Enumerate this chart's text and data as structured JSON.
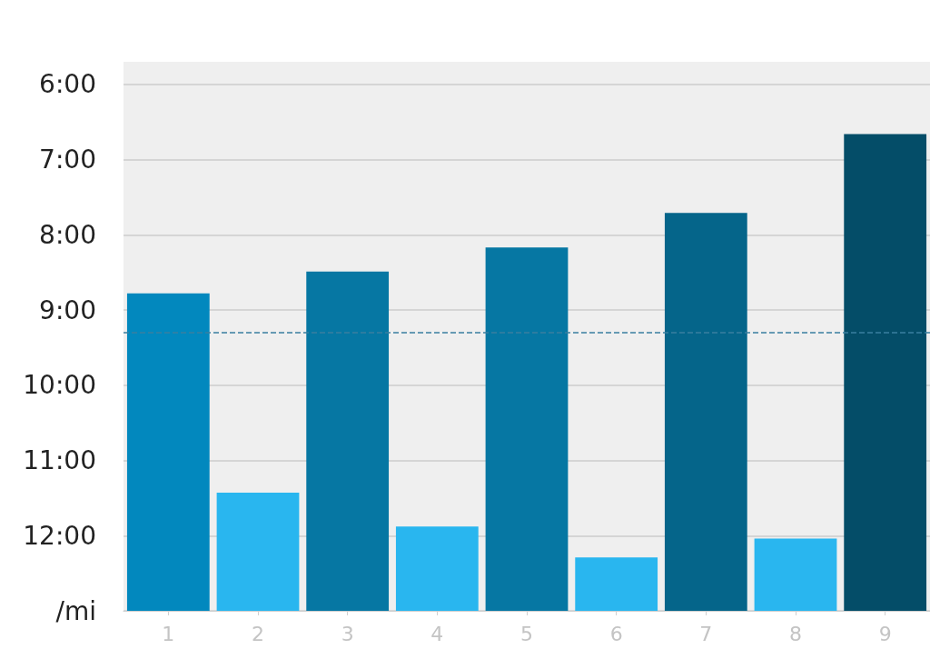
{
  "chart_data": {
    "type": "bar",
    "categories": [
      "1",
      "2",
      "3",
      "4",
      "5",
      "6",
      "7",
      "8",
      "9"
    ],
    "base": [
      13,
      13,
      13,
      13,
      13,
      13,
      13,
      13,
      13
    ],
    "values": [
      -4.22,
      -1.57,
      -4.51,
      -1.12,
      -4.83,
      -0.71,
      -5.29,
      -0.96,
      -6.34
    ],
    "colors": [
      "#0288be",
      "#29b6ef",
      "#0677a3",
      "#29b6ef",
      "#0677a3",
      "#29b6ef",
      "#05658a",
      "#29b6ef",
      "#044d68"
    ],
    "ylim": [
      13,
      5.7
    ],
    "yticks": [
      {
        "value": 6,
        "label": "6:00"
      },
      {
        "value": 7,
        "label": "7:00"
      },
      {
        "value": 8,
        "label": "8:00"
      },
      {
        "value": 9,
        "label": "9:00"
      },
      {
        "value": 10,
        "label": "10:00"
      },
      {
        "value": 11,
        "label": "11:00"
      },
      {
        "value": 12,
        "label": "12:00"
      },
      {
        "value": 13,
        "label": "/mi"
      }
    ],
    "ref_lines": [
      {
        "axis": "y",
        "value": 9.3,
        "color": "#3a7fa0",
        "line_style": "dashed"
      }
    ],
    "grid": "y"
  }
}
